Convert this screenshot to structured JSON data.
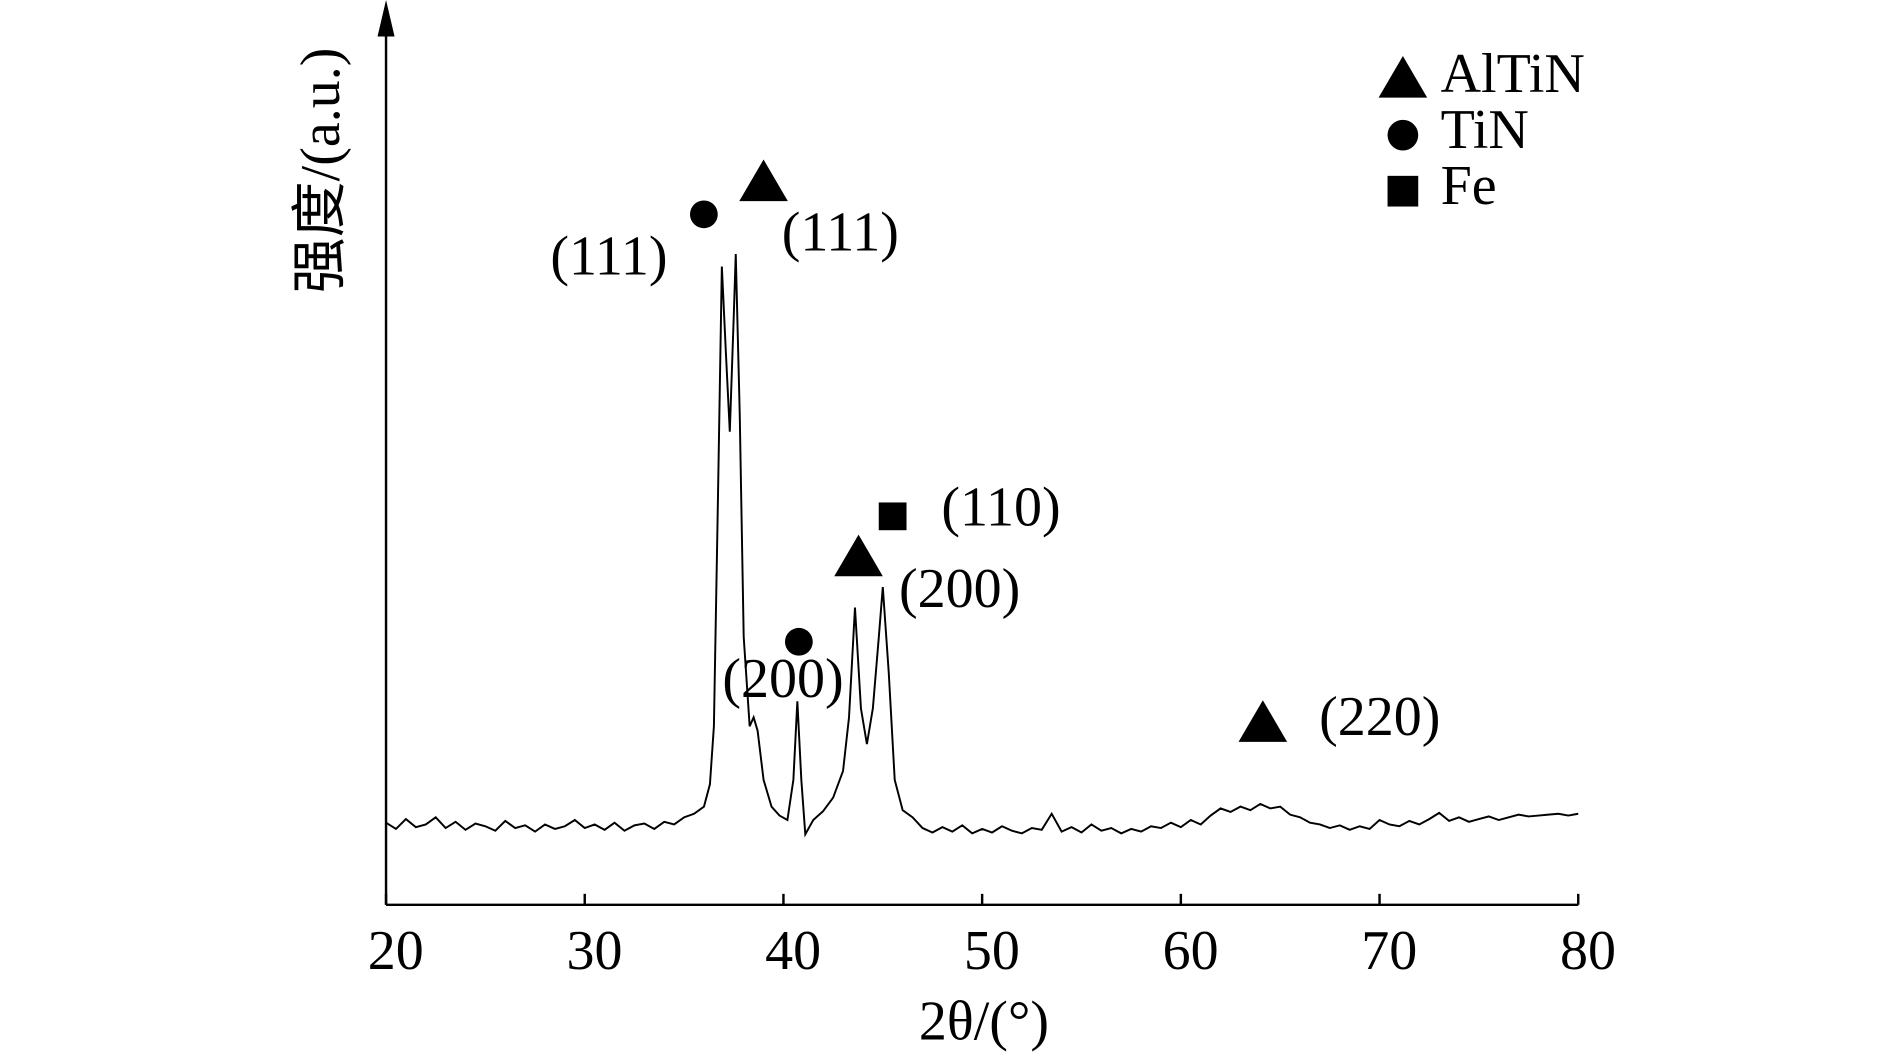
{
  "chart_data": {
    "type": "line",
    "xlabel": "2θ/(°)",
    "ylabel": "强度/(a.u.)",
    "xlim": [
      20,
      80
    ],
    "xticks": [
      20,
      30,
      40,
      50,
      60,
      70,
      80
    ],
    "ylim": [
      0,
      100
    ],
    "series": [
      {
        "color": "#000000",
        "x": [
          20,
          20.5,
          21,
          21.5,
          22,
          22.5,
          23,
          23.5,
          24,
          24.5,
          25,
          25.5,
          26,
          26.5,
          27,
          27.5,
          28,
          28.5,
          29,
          29.5,
          30,
          30.5,
          31,
          31.5,
          32,
          32.5,
          33,
          33.5,
          34,
          34.5,
          35,
          35.5,
          36,
          36.3,
          36.5,
          36.7,
          36.9,
          37.1,
          37.3,
          37.5,
          37.6,
          37.8,
          38.0,
          38.3,
          38.5,
          38.7,
          39.0,
          39.4,
          39.8,
          40.2,
          40.5,
          40.7,
          40.9,
          41.1,
          41.5,
          42,
          42.5,
          43,
          43.3,
          43.6,
          43.9,
          44.2,
          44.5,
          44.8,
          45.0,
          45.3,
          45.6,
          46,
          46.5,
          47,
          47.5,
          48,
          48.5,
          49,
          49.5,
          50,
          50.5,
          51,
          51.5,
          52,
          52.5,
          53,
          53.5,
          54,
          54.5,
          55,
          55.5,
          56,
          56.5,
          57,
          57.5,
          58,
          58.5,
          59,
          59.5,
          60,
          60.5,
          61,
          61.5,
          62,
          62.5,
          63,
          63.5,
          64,
          64.5,
          65,
          65.5,
          66,
          66.5,
          67,
          67.5,
          68,
          68.5,
          69,
          69.5,
          70,
          70.5,
          71,
          71.5,
          72,
          72.5,
          73,
          73.5,
          74,
          74.5,
          75,
          75.5,
          76,
          76.5,
          77,
          77.5,
          78,
          78.5,
          79,
          79.5,
          80
        ],
        "values": [
          9.2,
          8.5,
          9.6,
          8.7,
          9.0,
          9.8,
          8.6,
          9.3,
          8.4,
          9.1,
          8.8,
          8.3,
          9.4,
          8.6,
          8.9,
          8.2,
          9.0,
          8.5,
          8.8,
          9.5,
          8.6,
          9.0,
          8.4,
          9.2,
          8.3,
          8.9,
          9.1,
          8.5,
          9.3,
          9.0,
          9.8,
          10.2,
          11.0,
          13.5,
          20,
          45,
          71.5,
          62,
          53,
          66,
          72.9,
          55,
          30,
          20,
          21,
          19.5,
          14,
          11,
          10,
          9.5,
          14,
          22.8,
          14,
          7.9,
          9.5,
          10.5,
          12,
          15,
          21,
          33.3,
          22,
          18,
          22,
          30,
          35.6,
          26,
          14,
          10.6,
          9.8,
          8.6,
          8.1,
          8.7,
          8.2,
          8.9,
          8.0,
          8.5,
          8.1,
          8.8,
          8.3,
          8.0,
          8.6,
          8.4,
          10.2,
          8.2,
          8.7,
          8.1,
          9.0,
          8.3,
          8.6,
          8.0,
          8.5,
          8.2,
          8.8,
          8.6,
          9.2,
          8.7,
          9.5,
          9.0,
          10.0,
          10.8,
          10.4,
          11.0,
          10.6,
          11.3,
          10.8,
          11.0,
          10.1,
          9.8,
          9.2,
          9.0,
          8.6,
          8.9,
          8.4,
          8.8,
          8.5,
          9.5,
          9.0,
          8.8,
          9.4,
          9.0,
          9.6,
          10.3,
          9.4,
          9.8,
          9.3,
          9.6,
          9.9,
          9.5,
          9.8,
          10.1,
          9.9,
          10.0,
          10.1,
          10.2,
          10.0,
          10.2
        ]
      }
    ],
    "legend": [
      {
        "name": "AlTiN",
        "marker": "triangle"
      },
      {
        "name": "TiN",
        "marker": "circle"
      },
      {
        "name": "Fe",
        "marker": "square"
      }
    ],
    "annotations": [
      {
        "text": "(111)",
        "marker": "circle"
      },
      {
        "text": "(111)",
        "marker": "triangle"
      },
      {
        "text": "(200)",
        "marker": "circle"
      },
      {
        "text": "(200)",
        "marker": "triangle"
      },
      {
        "text": "(110)",
        "marker": "square"
      },
      {
        "text": "(220)",
        "marker": "triangle"
      }
    ]
  }
}
